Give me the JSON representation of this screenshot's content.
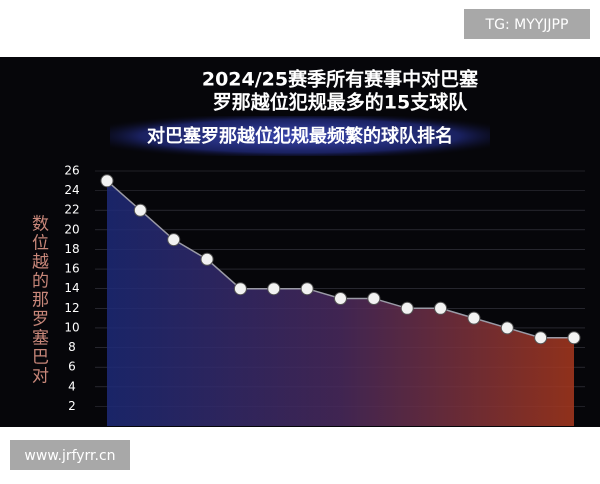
{
  "chart_data": {
    "type": "line",
    "title_lines": [
      "2024/25赛季所有赛事中对巴塞",
      "罗那越位犯规最多的15支球队"
    ],
    "subtitle": "对巴塞罗那越位犯规最频繁的球队排名",
    "ylabel": "数位越的那罗塞巴对",
    "categories": [
      null,
      null,
      null,
      null,
      null,
      null,
      null,
      null,
      null,
      null,
      null,
      null,
      null,
      null,
      null
    ],
    "values": [
      25,
      22,
      19,
      17,
      14,
      14,
      14,
      13,
      13,
      12,
      12,
      11,
      10,
      9,
      9
    ],
    "color": "#9a9aa6",
    "ylim": [
      0,
      26
    ],
    "yticks": [
      2,
      4,
      6,
      8,
      10,
      12,
      14,
      16,
      18,
      20,
      22,
      24,
      26
    ],
    "grid": true
  },
  "watermarks": [
    "TG: MYYJJPP",
    "www.jrfyrr.cn"
  ]
}
